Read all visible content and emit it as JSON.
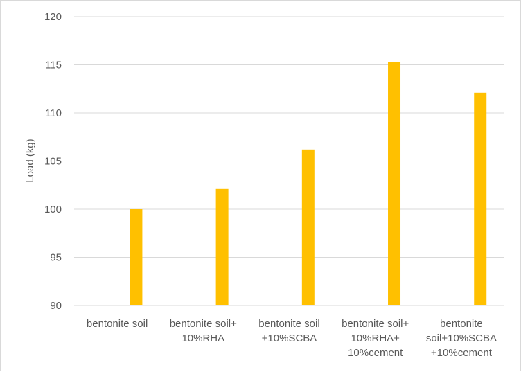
{
  "chart_data": {
    "type": "bar",
    "title": "",
    "xlabel": "",
    "ylabel": "Load (kg)",
    "ylim": [
      90,
      120
    ],
    "yticks": [
      90,
      95,
      100,
      105,
      110,
      115,
      120
    ],
    "grid": true,
    "legend": "none",
    "categories": [
      [
        "bentonite soil"
      ],
      [
        "bentonite soil+",
        "10%RHA"
      ],
      [
        "bentonite soil",
        "+10%SCBA"
      ],
      [
        "bentonite soil+",
        "10%RHA+",
        "10%cement"
      ],
      [
        "bentonite",
        "soil+10%SCBA",
        "+10%cement"
      ]
    ],
    "series": [
      {
        "values": [
          100,
          102.1,
          106.2,
          115.3,
          112.1
        ],
        "color": "#ffc000"
      }
    ]
  }
}
